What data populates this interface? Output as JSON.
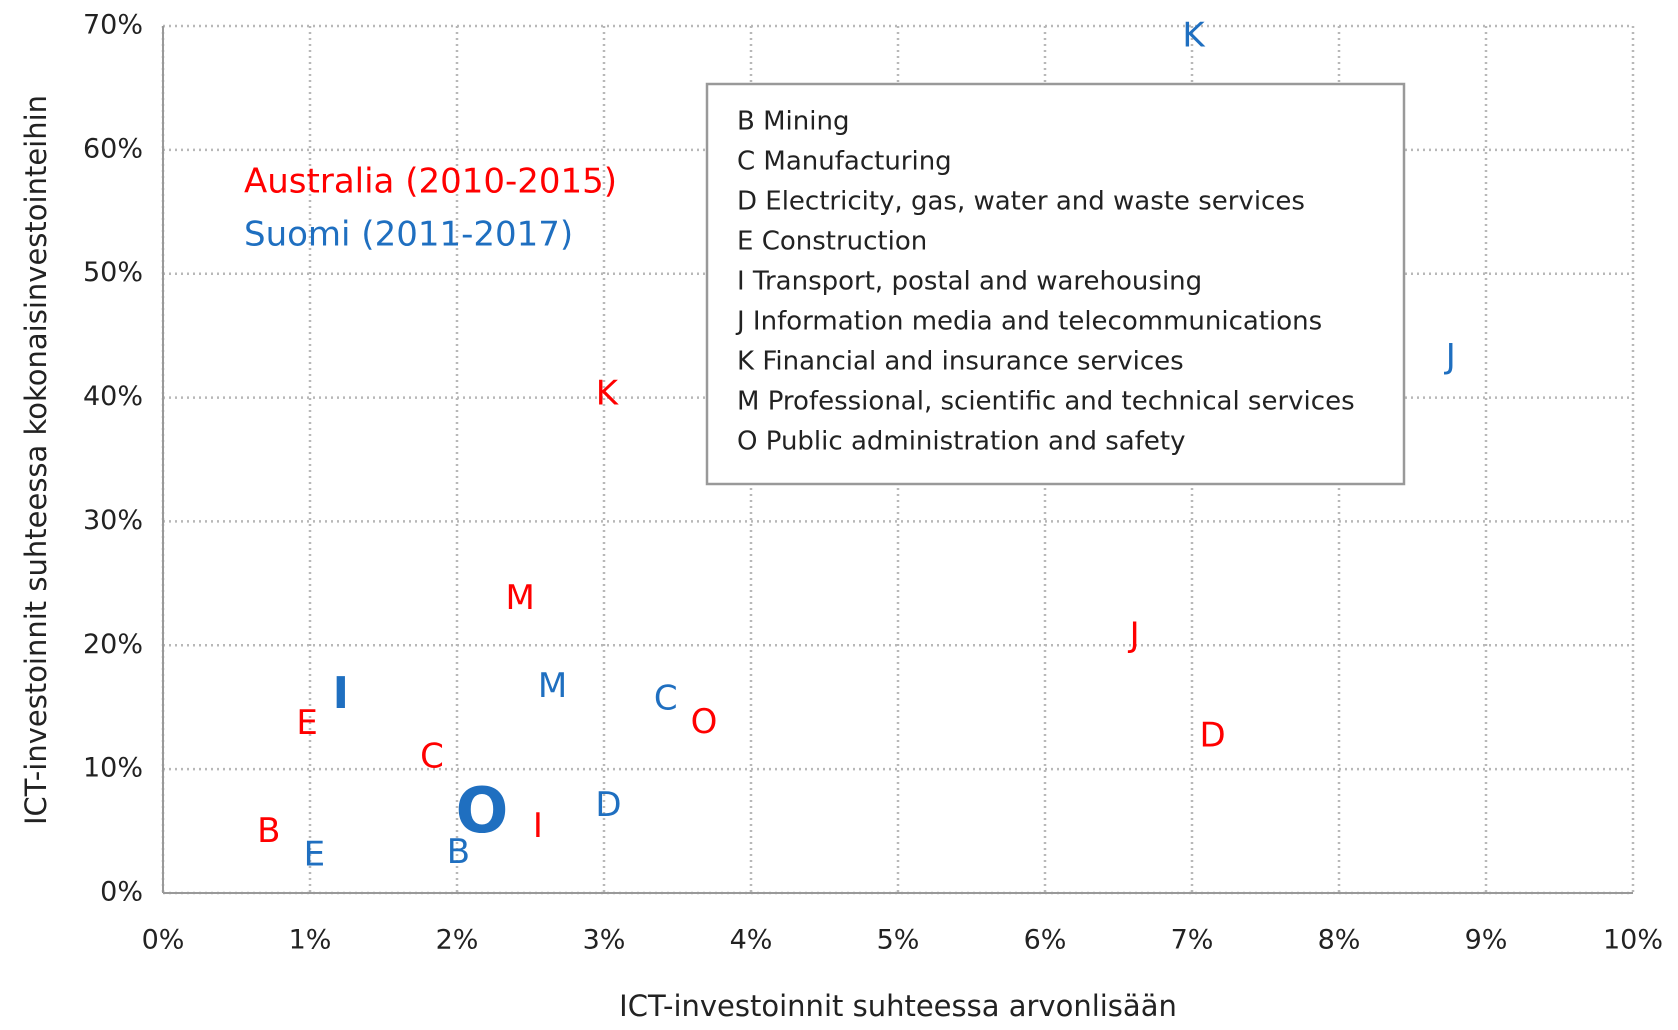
{
  "chart_data": {
    "type": "scatter",
    "x_label": "ICT-investoinnit suhteessa arvonlisään",
    "y_label": "ICT-investoinnit suhteessa kokonaisinvestointeihin",
    "xlim": [
      0,
      10
    ],
    "ylim": [
      0,
      70
    ],
    "xticks": [
      {
        "value": 0,
        "label": "0%"
      },
      {
        "value": 1,
        "label": "1%"
      },
      {
        "value": 2,
        "label": "2%"
      },
      {
        "value": 3,
        "label": "3%"
      },
      {
        "value": 4,
        "label": "4%"
      },
      {
        "value": 5,
        "label": "5%"
      },
      {
        "value": 6,
        "label": "6%"
      },
      {
        "value": 7,
        "label": "7%"
      },
      {
        "value": 8,
        "label": "8%"
      },
      {
        "value": 9,
        "label": "9%"
      },
      {
        "value": 10,
        "label": "10%"
      }
    ],
    "yticks": [
      {
        "value": 0,
        "label": "0%"
      },
      {
        "value": 10,
        "label": "10%"
      },
      {
        "value": 20,
        "label": "20%"
      },
      {
        "value": 30,
        "label": "30%"
      },
      {
        "value": 40,
        "label": "40%"
      },
      {
        "value": 50,
        "label": "50%"
      },
      {
        "value": 60,
        "label": "60%"
      },
      {
        "value": 70,
        "label": "70%"
      }
    ],
    "grid": true,
    "series": [
      {
        "name": "Australia (2010-2015)",
        "color": "#ff0000",
        "labels": [
          "B",
          "C",
          "D",
          "E",
          "I",
          "J",
          "K",
          "M",
          "O"
        ],
        "x": [
          0.72,
          1.83,
          7.14,
          0.98,
          2.55,
          6.61,
          3.02,
          2.43,
          3.68
        ],
        "y": [
          4.9,
          10.9,
          12.6,
          13.6,
          5.3,
          20.7,
          40.2,
          23.7,
          13.7
        ],
        "bold": [
          false,
          false,
          false,
          false,
          false,
          false,
          false,
          false,
          false
        ]
      },
      {
        "name": "Suomi (2011-2017)",
        "color": "#1f6fc0",
        "labels": [
          "B",
          "C",
          "D",
          "E",
          "I",
          "J",
          "K",
          "M",
          "O"
        ],
        "x": [
          2.01,
          3.42,
          3.03,
          1.03,
          1.21,
          8.76,
          7.01,
          2.65,
          2.17
        ],
        "y": [
          3.2,
          15.6,
          7.0,
          3.0,
          15.9,
          43.2,
          69.1,
          16.6,
          6.3
        ],
        "bold": [
          false,
          false,
          false,
          false,
          true,
          false,
          false,
          false,
          true
        ]
      }
    ],
    "annotations": [
      "B Mining",
      "C Manufacturing",
      "D Electricity, gas, water and waste services",
      "E Construction",
      "I Transport, postal and warehousing",
      "J Information media and telecommunications",
      "K Financial and insurance services",
      "M Professional, scientific and technical services",
      "O Public administration and safety"
    ]
  }
}
